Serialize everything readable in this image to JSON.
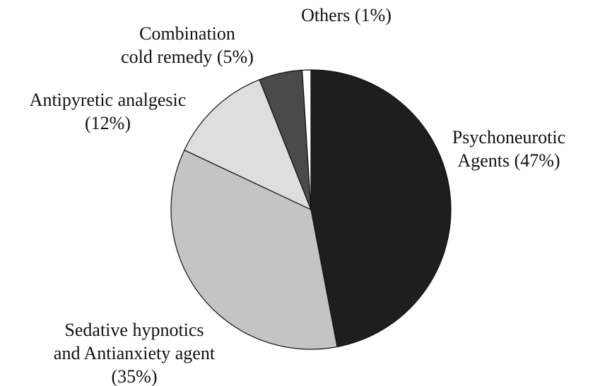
{
  "chart_data": {
    "type": "pie",
    "categories": [
      "Psychoneurotic\nAgents",
      "Sedative hypnotics\nand Antianxiety agent",
      "Antipyretic analgesic",
      "Combination\ncold remedy",
      "Others"
    ],
    "values": [
      47,
      35,
      12,
      5,
      1
    ],
    "value_labels": [
      "(47%)",
      "(35%)",
      "(12%)",
      "(5%)",
      "(1%)"
    ],
    "colors": [
      "#1e1e1e",
      "#c4c4c4",
      "#dedede",
      "#4a4a4a",
      "#ffffff"
    ]
  }
}
